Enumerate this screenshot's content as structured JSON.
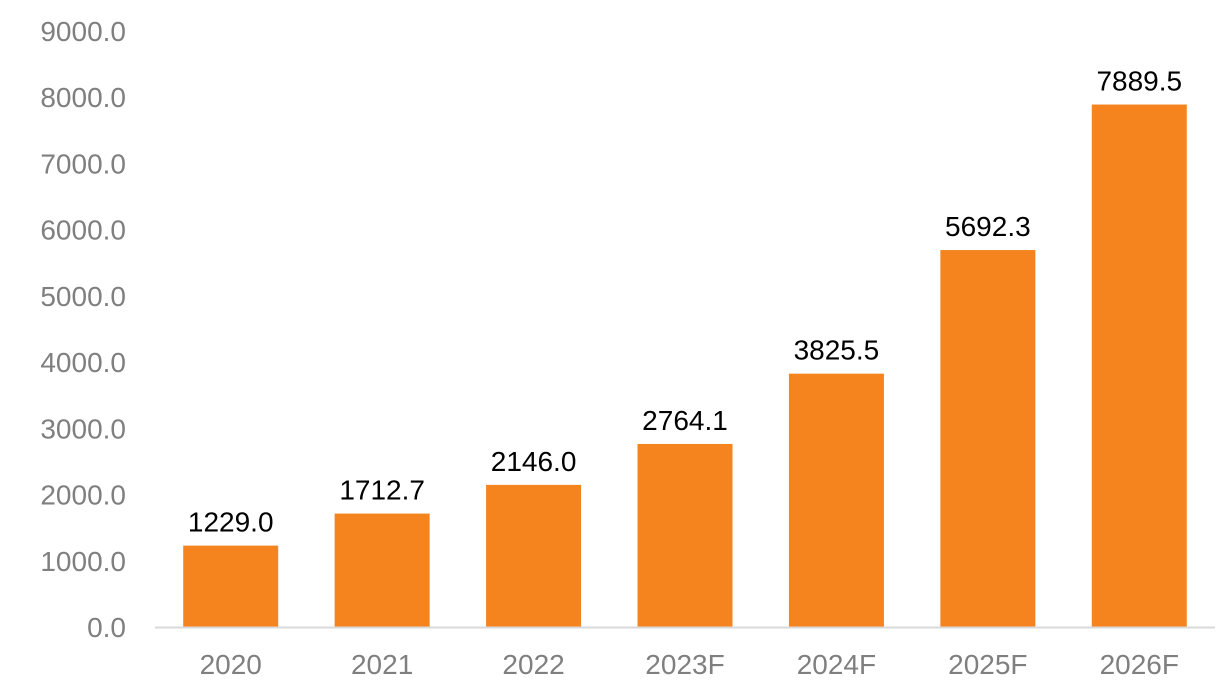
{
  "chart_data": {
    "type": "bar",
    "title": "",
    "xlabel": "",
    "ylabel": "",
    "categories": [
      "2020",
      "2021",
      "2022",
      "2023F",
      "2024F",
      "2025F",
      "2026F"
    ],
    "values": [
      1229.0,
      1712.7,
      2146.0,
      2764.1,
      3825.5,
      5692.3,
      7889.5
    ],
    "data_labels": [
      "1229.0",
      "1712.7",
      "2146.0",
      "2764.1",
      "3825.5",
      "5692.3",
      "7889.5"
    ],
    "ylim": [
      0,
      9000
    ],
    "yticks": [
      0,
      1000,
      2000,
      3000,
      4000,
      5000,
      6000,
      7000,
      8000,
      9000
    ],
    "ytick_labels": [
      "0.0",
      "1000.0",
      "2000.0",
      "3000.0",
      "4000.0",
      "5000.0",
      "6000.0",
      "7000.0",
      "8000.0",
      "9000.0"
    ],
    "grid": false,
    "legend": "none"
  },
  "colors": {
    "bar": "#f5841f",
    "axis_line": "#d9d9d9",
    "tick_text": "#7f7f7f",
    "data_label_text": "#000000"
  }
}
